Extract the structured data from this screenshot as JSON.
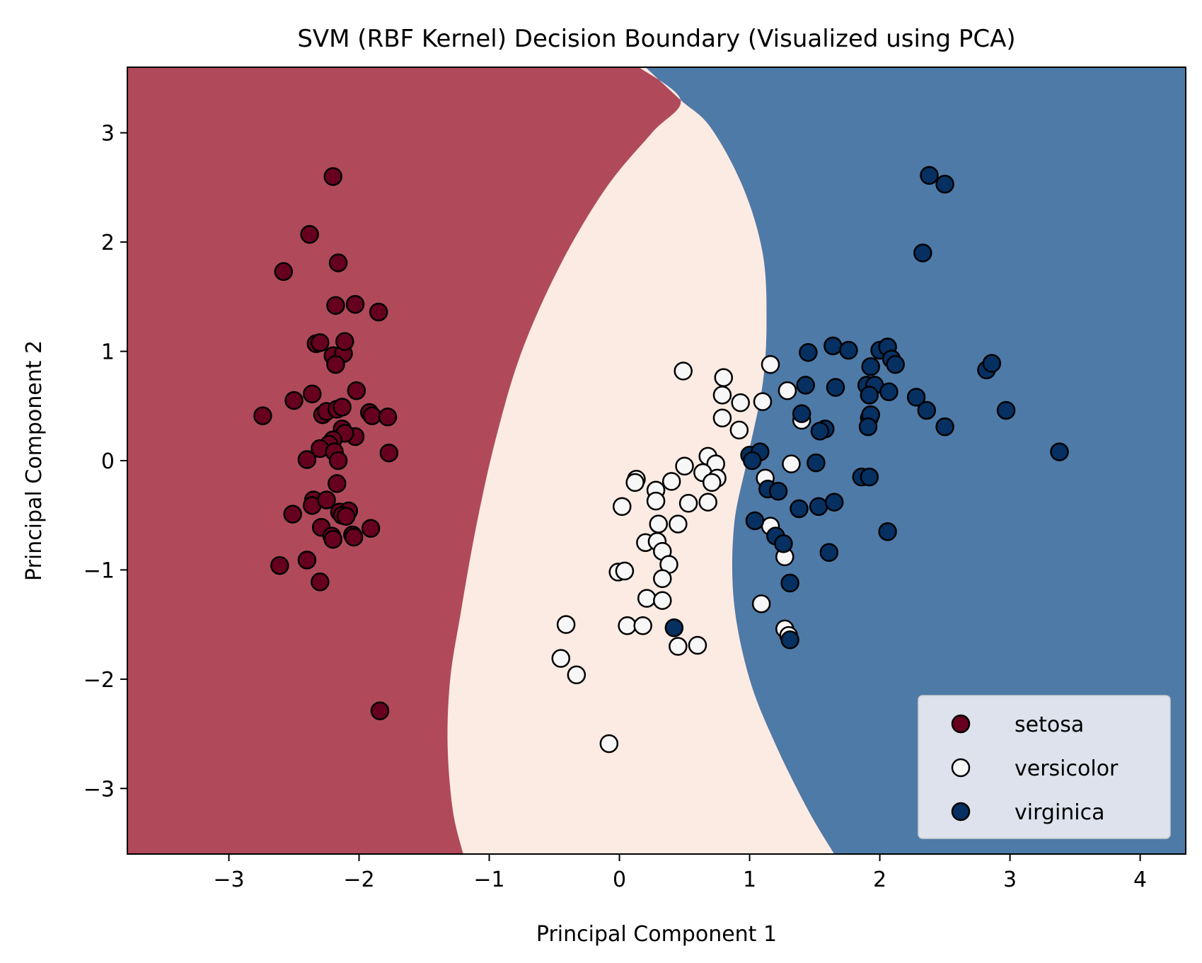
{
  "chart_data": {
    "type": "scatter",
    "title": "SVM (RBF Kernel) Decision Boundary (Visualized using PCA)",
    "xlabel": "Principal Component 1",
    "ylabel": "Principal Component 2",
    "xlim": [
      -3.78,
      4.35
    ],
    "ylim": [
      -3.6,
      3.6
    ],
    "xticks": [
      -3,
      -2,
      -1,
      0,
      1,
      2,
      3,
      4
    ],
    "yticks": [
      -3,
      -2,
      -1,
      0,
      1,
      2,
      3
    ],
    "tick_labels": {
      "x": [
        "−3",
        "−2",
        "−1",
        "0",
        "1",
        "2",
        "3",
        "4"
      ],
      "y": [
        "−3",
        "−2",
        "−1",
        "0",
        "1",
        "2",
        "3"
      ]
    },
    "grid": false,
    "legend_position": "lower-right",
    "regions": [
      {
        "class": "setosa",
        "color": "#b04a5a"
      },
      {
        "class": "versicolor",
        "color": "#fcebe3"
      },
      {
        "class": "virginica",
        "color": "#4e7aa8"
      }
    ],
    "boundaries": {
      "setosa_versicolor": [
        [
          -1.2,
          -3.6
        ],
        [
          -1.28,
          -3.2
        ],
        [
          -1.32,
          -2.6
        ],
        [
          -1.3,
          -2.0
        ],
        [
          -1.22,
          -1.4
        ],
        [
          -1.1,
          -0.6
        ],
        [
          -0.95,
          0.2
        ],
        [
          -0.75,
          1.0
        ],
        [
          -0.45,
          1.8
        ],
        [
          -0.1,
          2.5
        ],
        [
          0.25,
          3.0
        ],
        [
          0.47,
          3.3
        ],
        [
          0.15,
          3.6
        ]
      ],
      "versicolor_virginica": [
        [
          1.65,
          -3.6
        ],
        [
          1.45,
          -3.2
        ],
        [
          1.2,
          -2.6
        ],
        [
          1.0,
          -2.0
        ],
        [
          0.88,
          -1.3
        ],
        [
          0.88,
          -0.6
        ],
        [
          0.98,
          0.0
        ],
        [
          1.1,
          0.7
        ],
        [
          1.13,
          1.3
        ],
        [
          1.1,
          1.9
        ],
        [
          0.95,
          2.5
        ],
        [
          0.7,
          3.05
        ],
        [
          0.47,
          3.3
        ],
        [
          0.2,
          3.6
        ]
      ]
    },
    "series": [
      {
        "name": "setosa",
        "color": "#67001f",
        "points": [
          [
            -2.2,
            2.6
          ],
          [
            -2.38,
            2.07
          ],
          [
            -2.58,
            1.73
          ],
          [
            -2.16,
            1.81
          ],
          [
            -2.18,
            1.42
          ],
          [
            -2.03,
            1.43
          ],
          [
            -1.85,
            1.36
          ],
          [
            -2.33,
            1.07
          ],
          [
            -2.3,
            1.08
          ],
          [
            -2.2,
            0.96
          ],
          [
            -2.12,
            0.98
          ],
          [
            -2.11,
            1.09
          ],
          [
            -2.18,
            0.88
          ],
          [
            -2.74,
            0.41
          ],
          [
            -2.5,
            0.55
          ],
          [
            -2.36,
            0.61
          ],
          [
            -2.02,
            0.64
          ],
          [
            -2.28,
            0.42
          ],
          [
            -2.25,
            0.45
          ],
          [
            -2.17,
            0.47
          ],
          [
            -2.13,
            0.49
          ],
          [
            -1.92,
            0.44
          ],
          [
            -1.9,
            0.41
          ],
          [
            -1.78,
            0.4
          ],
          [
            -2.03,
            0.22
          ],
          [
            -2.13,
            0.29
          ],
          [
            -2.11,
            0.25
          ],
          [
            -2.2,
            0.19
          ],
          [
            -2.23,
            0.15
          ],
          [
            -2.3,
            0.11
          ],
          [
            -2.19,
            0.08
          ],
          [
            -2.4,
            0.01
          ],
          [
            -2.16,
            0.0
          ],
          [
            -1.77,
            0.07
          ],
          [
            -2.17,
            -0.21
          ],
          [
            -2.35,
            -0.36
          ],
          [
            -2.36,
            -0.41
          ],
          [
            -2.25,
            -0.36
          ],
          [
            -2.15,
            -0.47
          ],
          [
            -2.08,
            -0.46
          ],
          [
            -2.13,
            -0.5
          ],
          [
            -2.1,
            -0.51
          ],
          [
            -2.51,
            -0.49
          ],
          [
            -2.29,
            -0.61
          ],
          [
            -2.21,
            -0.69
          ],
          [
            -2.2,
            -0.72
          ],
          [
            -2.05,
            -0.68
          ],
          [
            -2.04,
            -0.7
          ],
          [
            -1.91,
            -0.62
          ],
          [
            -2.4,
            -0.91
          ],
          [
            -2.61,
            -0.96
          ],
          [
            -2.3,
            -1.11
          ],
          [
            -1.84,
            -2.29
          ]
        ]
      },
      {
        "name": "versicolor",
        "color": "#f7f7f7",
        "points": [
          [
            0.49,
            0.82
          ],
          [
            0.8,
            0.76
          ],
          [
            1.16,
            0.88
          ],
          [
            0.79,
            0.6
          ],
          [
            0.93,
            0.53
          ],
          [
            1.1,
            0.54
          ],
          [
            1.29,
            0.64
          ],
          [
            0.79,
            0.39
          ],
          [
            0.92,
            0.28
          ],
          [
            1.4,
            0.37
          ],
          [
            0.68,
            0.04
          ],
          [
            0.74,
            -0.03
          ],
          [
            0.64,
            -0.11
          ],
          [
            0.75,
            -0.16
          ],
          [
            0.5,
            -0.05
          ],
          [
            0.4,
            -0.19
          ],
          [
            0.71,
            -0.2
          ],
          [
            0.13,
            -0.17
          ],
          [
            0.12,
            -0.2
          ],
          [
            0.28,
            -0.27
          ],
          [
            0.28,
            -0.37
          ],
          [
            0.02,
            -0.42
          ],
          [
            0.53,
            -0.39
          ],
          [
            0.68,
            -0.38
          ],
          [
            0.45,
            -0.58
          ],
          [
            0.3,
            -0.58
          ],
          [
            0.2,
            -0.75
          ],
          [
            0.29,
            -0.74
          ],
          [
            0.33,
            -0.83
          ],
          [
            0.38,
            -0.95
          ],
          [
            0.33,
            -1.08
          ],
          [
            -0.01,
            -1.02
          ],
          [
            0.04,
            -1.01
          ],
          [
            0.21,
            -1.26
          ],
          [
            0.33,
            -1.28
          ],
          [
            1.09,
            -1.31
          ],
          [
            1.12,
            -0.16
          ],
          [
            1.16,
            -0.6
          ],
          [
            1.27,
            -0.88
          ],
          [
            1.27,
            -1.54
          ],
          [
            1.3,
            -1.6
          ],
          [
            1.32,
            -0.03
          ],
          [
            -0.41,
            -1.5
          ],
          [
            0.06,
            -1.51
          ],
          [
            0.18,
            -1.51
          ],
          [
            0.45,
            -1.7
          ],
          [
            0.6,
            -1.69
          ],
          [
            -0.45,
            -1.81
          ],
          [
            -0.33,
            -1.96
          ],
          [
            -0.08,
            -2.59
          ]
        ]
      },
      {
        "name": "virginica",
        "color": "#053061",
        "points": [
          [
            2.38,
            2.61
          ],
          [
            2.5,
            2.53
          ],
          [
            2.33,
            1.9
          ],
          [
            1.45,
            0.99
          ],
          [
            1.64,
            1.05
          ],
          [
            1.76,
            1.01
          ],
          [
            2.0,
            1.01
          ],
          [
            2.06,
            1.04
          ],
          [
            2.09,
            0.93
          ],
          [
            2.12,
            0.88
          ],
          [
            1.93,
            0.86
          ],
          [
            1.43,
            0.69
          ],
          [
            1.66,
            0.67
          ],
          [
            1.9,
            0.69
          ],
          [
            1.96,
            0.69
          ],
          [
            2.07,
            0.63
          ],
          [
            1.92,
            0.6
          ],
          [
            2.28,
            0.58
          ],
          [
            2.36,
            0.46
          ],
          [
            1.92,
            0.39
          ],
          [
            1.93,
            0.42
          ],
          [
            1.4,
            0.43
          ],
          [
            2.82,
            0.83
          ],
          [
            2.86,
            0.89
          ],
          [
            2.97,
            0.46
          ],
          [
            3.38,
            0.08
          ],
          [
            2.5,
            0.31
          ],
          [
            1.91,
            0.31
          ],
          [
            1.58,
            0.29
          ],
          [
            1.54,
            0.27
          ],
          [
            1.0,
            0.05
          ],
          [
            1.08,
            0.08
          ],
          [
            1.02,
            0.0
          ],
          [
            1.51,
            -0.02
          ],
          [
            1.86,
            -0.15
          ],
          [
            1.92,
            -0.15
          ],
          [
            1.14,
            -0.26
          ],
          [
            1.22,
            -0.28
          ],
          [
            1.38,
            -0.44
          ],
          [
            1.53,
            -0.42
          ],
          [
            1.65,
            -0.38
          ],
          [
            1.04,
            -0.55
          ],
          [
            2.06,
            -0.65
          ],
          [
            1.2,
            -0.69
          ],
          [
            1.26,
            -0.76
          ],
          [
            1.61,
            -0.84
          ],
          [
            1.31,
            -1.12
          ],
          [
            0.42,
            -1.53
          ],
          [
            1.31,
            -1.64
          ]
        ]
      }
    ]
  }
}
